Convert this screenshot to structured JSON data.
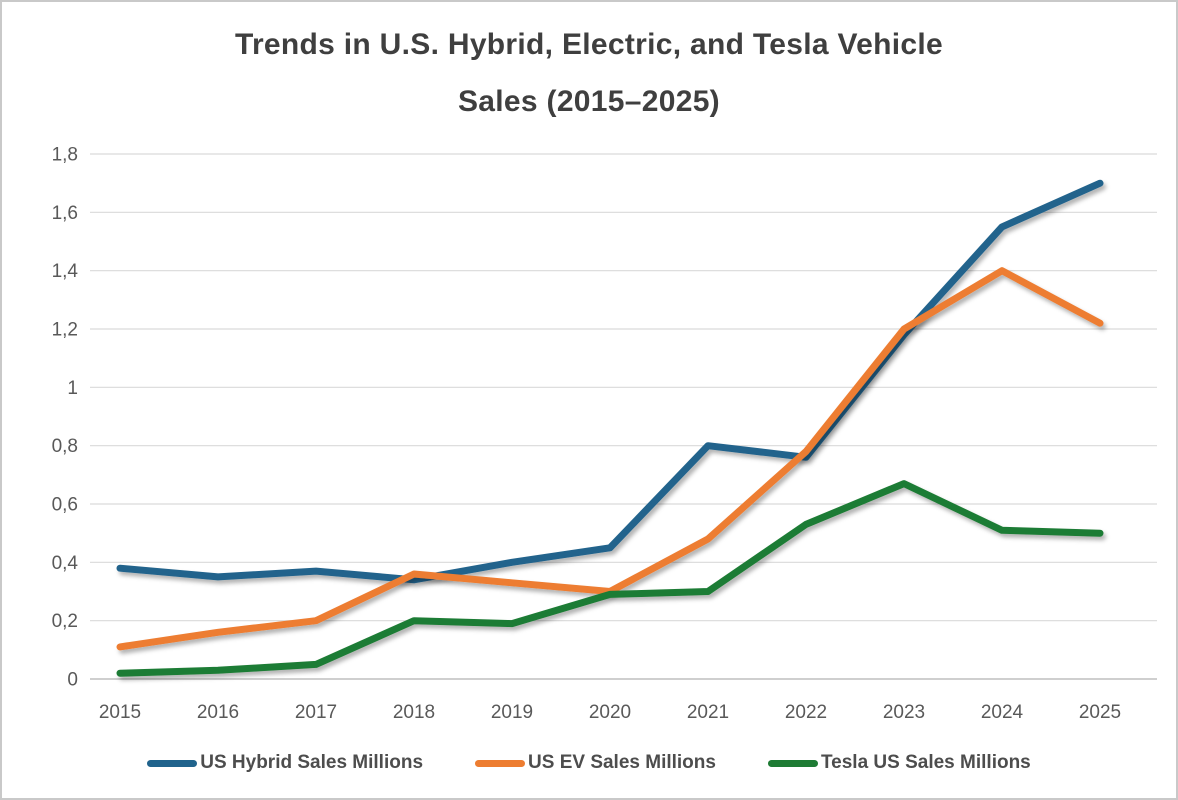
{
  "colors": {
    "background": "#FFFFFF",
    "frame_border": "#C9C9C9",
    "title_text": "#3F3F3F",
    "axis_labels": "#595959",
    "gridline": "#D9D9D9",
    "axis_line": "#BFBFBF",
    "legend_text": "#4D4D4D"
  },
  "chart_data": {
    "type": "line",
    "title": "Trends in U.S. Hybrid, Electric, and Tesla Vehicle Sales (2015–2025)",
    "title_lines": [
      "Trends in U.S. Hybrid, Electric, and Tesla Vehicle",
      "Sales (2015–2025)"
    ],
    "x": [
      2015,
      2016,
      2017,
      2018,
      2019,
      2020,
      2021,
      2022,
      2023,
      2024,
      2025
    ],
    "x_tick_labels": [
      "2015",
      "2016",
      "2017",
      "2018",
      "2019",
      "2020",
      "2021",
      "2022",
      "2023",
      "2024",
      "2025"
    ],
    "y_tick_labels_bottom_to_top": [
      "0",
      "0,2",
      "0,4",
      "0,6",
      "0,8",
      "1",
      "1,2",
      "1,4",
      "1,6",
      "1,8"
    ],
    "ylim": [
      0,
      1.8
    ],
    "y_tick_step": 0.2,
    "decimal_separator": ",",
    "grid": "horizontal-only",
    "legend_position": "bottom-center",
    "xlabel": "",
    "ylabel": "",
    "series": [
      {
        "name": "US Hybrid Sales Millions",
        "color": "#20638C",
        "values": [
          0.38,
          0.35,
          0.37,
          0.34,
          0.4,
          0.45,
          0.8,
          0.76,
          1.18,
          1.55,
          1.7
        ]
      },
      {
        "name": "US EV Sales Millions",
        "color": "#ED7D31",
        "values": [
          0.11,
          0.16,
          0.2,
          0.36,
          0.33,
          0.3,
          0.48,
          0.78,
          1.2,
          1.4,
          1.22
        ]
      },
      {
        "name": "Tesla US Sales Millions",
        "color": "#1E7B34",
        "values": [
          0.02,
          0.03,
          0.05,
          0.2,
          0.19,
          0.29,
          0.3,
          0.53,
          0.67,
          0.51,
          0.5
        ]
      }
    ]
  }
}
